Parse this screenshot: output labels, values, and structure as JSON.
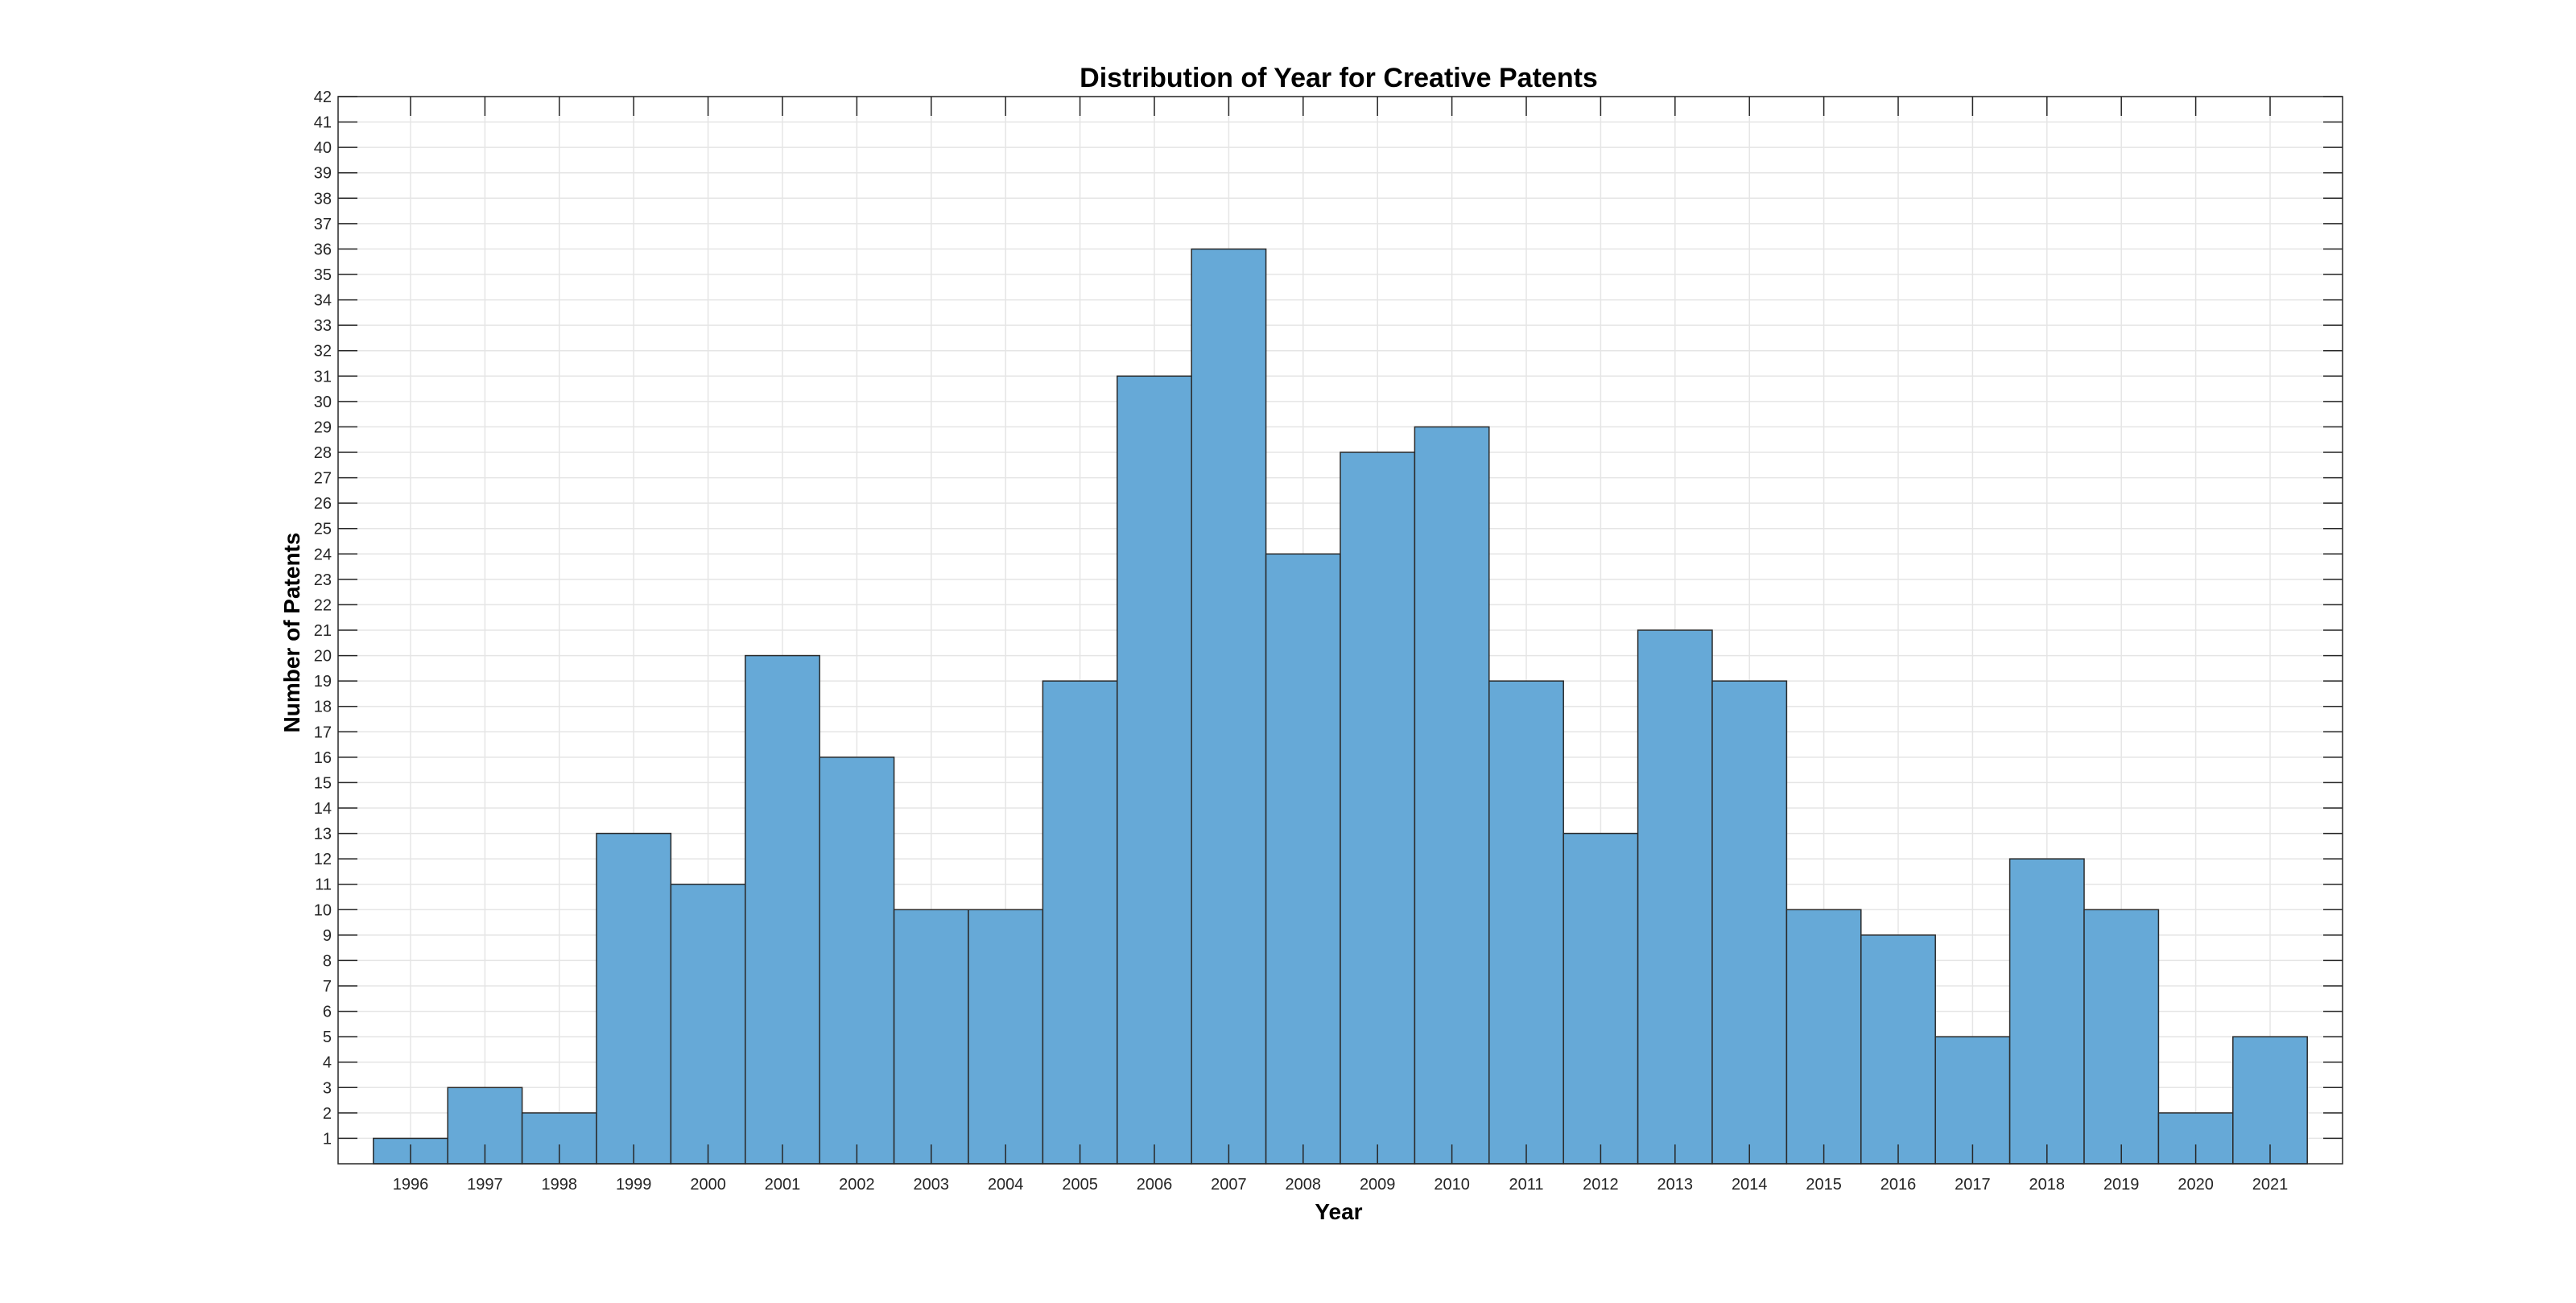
{
  "chart_data": {
    "type": "bar",
    "title": "Distribution of Year for Creative Patents",
    "xlabel": "Year",
    "ylabel": "Number of Patents",
    "categories": [
      "1996",
      "1997",
      "1998",
      "1999",
      "2000",
      "2001",
      "2002",
      "2003",
      "2004",
      "2005",
      "2006",
      "2007",
      "2008",
      "2009",
      "2010",
      "2011",
      "2012",
      "2013",
      "2014",
      "2015",
      "2016",
      "2017",
      "2018",
      "2019",
      "2020",
      "2021"
    ],
    "values": [
      1,
      3,
      2,
      13,
      11,
      20,
      16,
      10,
      10,
      19,
      31,
      36,
      24,
      28,
      29,
      19,
      13,
      21,
      19,
      10,
      9,
      5,
      12,
      10,
      2,
      5
    ],
    "ylim": [
      0,
      42
    ],
    "y_ticks": [
      1,
      2,
      3,
      4,
      5,
      6,
      7,
      8,
      9,
      10,
      11,
      12,
      13,
      14,
      15,
      16,
      17,
      18,
      19,
      20,
      21,
      22,
      23,
      24,
      25,
      26,
      27,
      28,
      29,
      30,
      31,
      32,
      33,
      34,
      35,
      36,
      37,
      38,
      39,
      40,
      41,
      42
    ],
    "grid": true,
    "bar_color": "#66a9d7"
  }
}
